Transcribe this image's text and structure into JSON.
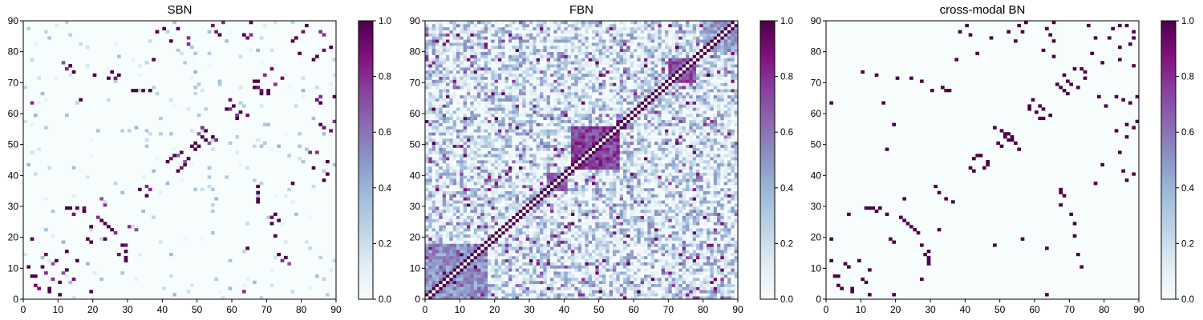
{
  "colors": {
    "low": "#f7fcfd",
    "mid": "#8c96c6",
    "high": "#4d004b",
    "ramp": [
      "#f7fcfd",
      "#e0ecf4",
      "#bfd3e6",
      "#9ebcda",
      "#8c96c6",
      "#8c6bb1",
      "#88419d",
      "#810f7c",
      "#4d004b"
    ]
  },
  "chart_data": [
    {
      "type": "heatmap",
      "title": "SBN",
      "matrix_size": 90,
      "x_ticks": [
        "0",
        "10",
        "20",
        "30",
        "40",
        "50",
        "60",
        "70",
        "80",
        "90"
      ],
      "y_ticks": [
        "0",
        "10",
        "20",
        "30",
        "40",
        "50",
        "60",
        "70",
        "80",
        "90"
      ],
      "xlim": [
        0,
        90
      ],
      "ylim": [
        0,
        90
      ],
      "colorbar": {
        "range": [
          0.0,
          1.0
        ],
        "ticks": [
          "0.0",
          "0.2",
          "0.4",
          "0.6",
          "0.8",
          "1.0"
        ]
      },
      "density": "sparse",
      "cells": [
        [
          2,
          19,
          1.0
        ],
        [
          3,
          7,
          1.0
        ],
        [
          4,
          3,
          0.9
        ],
        [
          5,
          10,
          1.0
        ],
        [
          6,
          14,
          0.9
        ],
        [
          7,
          2,
          1.0
        ],
        [
          8,
          6,
          0.8
        ],
        [
          9,
          12,
          1.0
        ],
        [
          10,
          1,
          1.0
        ],
        [
          11,
          8,
          0.7
        ],
        [
          12,
          15,
          1.0
        ],
        [
          13,
          29,
          1.0
        ],
        [
          14,
          73,
          1.0
        ],
        [
          15,
          29,
          1.0
        ],
        [
          16,
          64,
          1.0
        ],
        [
          17,
          29,
          0.9
        ],
        [
          18,
          19,
          1.0
        ],
        [
          19,
          23,
          1.0
        ],
        [
          20,
          72,
          1.0
        ],
        [
          21,
          26,
          0.8
        ],
        [
          22,
          32,
          0.7
        ],
        [
          23,
          24,
          1.0
        ],
        [
          24,
          71,
          1.0
        ],
        [
          25,
          22,
          1.0
        ],
        [
          26,
          71,
          0.9
        ],
        [
          27,
          14,
          0.9
        ],
        [
          28,
          17,
          1.0
        ],
        [
          29,
          12,
          1.0
        ],
        [
          30,
          23,
          0.8
        ],
        [
          31,
          67,
          1.0
        ],
        [
          32,
          67,
          1.0
        ],
        [
          33,
          35,
          1.0
        ],
        [
          34,
          67,
          1.0
        ],
        [
          35,
          36,
          0.8
        ],
        [
          36,
          67,
          1.0
        ],
        [
          37,
          77,
          1.0
        ],
        [
          38,
          86,
          1.0
        ],
        [
          40,
          87,
          1.0
        ],
        [
          41,
          44,
          1.0
        ],
        [
          42,
          45,
          0.9
        ],
        [
          43,
          46,
          1.0
        ],
        [
          44,
          46,
          0.8
        ],
        [
          45,
          47,
          1.0
        ],
        [
          46,
          44,
          0.7
        ],
        [
          47,
          84,
          0.8
        ],
        [
          48,
          49,
          1.0
        ],
        [
          49,
          50,
          1.0
        ],
        [
          50,
          53,
          1.0
        ],
        [
          51,
          55,
          0.8
        ],
        [
          52,
          51,
          1.0
        ],
        [
          53,
          50,
          0.7
        ],
        [
          54,
          52,
          1.0
        ],
        [
          55,
          86,
          0.9
        ],
        [
          56,
          85,
          1.0
        ],
        [
          57,
          89,
          0.8
        ],
        [
          58,
          61,
          1.0
        ],
        [
          59,
          64,
          0.9
        ],
        [
          60,
          62,
          1.0
        ],
        [
          61,
          59,
          0.8
        ],
        [
          62,
          60,
          1.0
        ],
        [
          63,
          2,
          0.8
        ],
        [
          64,
          84,
          1.0
        ],
        [
          65,
          85,
          0.8
        ],
        [
          66,
          70,
          1.0
        ],
        [
          67,
          68,
          0.9
        ],
        [
          68,
          66,
          1.0
        ],
        [
          69,
          72,
          0.8
        ],
        [
          70,
          67,
          1.0
        ],
        [
          71,
          74,
          0.9
        ],
        [
          72,
          27,
          1.0
        ],
        [
          73,
          25,
          1.0
        ],
        [
          74,
          12,
          0.8
        ],
        [
          75,
          13,
          1.0
        ],
        [
          76,
          11,
          0.7
        ],
        [
          77,
          83,
          1.0
        ],
        [
          78,
          84,
          1.0
        ],
        [
          79,
          79,
          1.0
        ],
        [
          80,
          86,
          0.9
        ],
        [
          81,
          88,
          1.0
        ],
        [
          82,
          47,
          0.8
        ],
        [
          83,
          42,
          1.0
        ],
        [
          84,
          64,
          0.9
        ],
        [
          85,
          63,
          1.0
        ],
        [
          86,
          85,
          0.8
        ],
        [
          87,
          44,
          1.0
        ],
        [
          88,
          54,
          0.9
        ],
        [
          89,
          65,
          1.0
        ]
      ]
    },
    {
      "type": "heatmap",
      "title": "FBN",
      "matrix_size": 90,
      "x_ticks": [
        "0",
        "10",
        "20",
        "30",
        "40",
        "50",
        "60",
        "70",
        "80",
        "90"
      ],
      "y_ticks": [
        "0",
        "10",
        "20",
        "30",
        "40",
        "50",
        "60",
        "70",
        "80",
        "90"
      ],
      "xlim": [
        0,
        90
      ],
      "ylim": [
        0,
        90
      ],
      "colorbar": {
        "range": [
          0.0,
          1.0
        ],
        "ticks": [
          "0.0",
          "0.2",
          "0.4",
          "0.6",
          "0.8",
          "1.0"
        ]
      },
      "density": "dense",
      "diagonal": "white",
      "blocks": [
        {
          "rows": [
            42,
            56
          ],
          "cols": [
            42,
            56
          ],
          "value": 0.85
        },
        {
          "rows": [
            70,
            78
          ],
          "cols": [
            70,
            78
          ],
          "value": 0.8
        },
        {
          "rows": [
            0,
            18
          ],
          "cols": [
            0,
            18
          ],
          "value": 0.6
        },
        {
          "rows": [
            35,
            41
          ],
          "cols": [
            35,
            41
          ],
          "value": 0.75
        },
        {
          "rows": [
            80,
            90
          ],
          "cols": [
            80,
            90
          ],
          "value": 0.55
        }
      ]
    },
    {
      "type": "heatmap",
      "title": "cross-modal BN",
      "matrix_size": 90,
      "x_ticks": [
        "0",
        "10",
        "20",
        "30",
        "40",
        "50",
        "60",
        "70",
        "80",
        "90"
      ],
      "y_ticks": [
        "0",
        "10",
        "20",
        "30",
        "40",
        "50",
        "60",
        "70",
        "80",
        "90"
      ],
      "xlim": [
        0,
        90
      ],
      "ylim": [
        0,
        90
      ],
      "colorbar": {
        "range": [
          0.0,
          1.0
        ],
        "ticks": [
          "0.0",
          "0.2",
          "0.4",
          "0.6",
          "0.8",
          "1.0"
        ]
      },
      "density": "binary",
      "cells": [
        [
          1,
          19,
          1.0
        ],
        [
          3,
          7,
          1.0
        ],
        [
          4,
          3,
          1.0
        ],
        [
          5,
          11,
          1.0
        ],
        [
          6,
          27,
          1.0
        ],
        [
          7,
          2,
          1.0
        ],
        [
          9,
          12,
          1.0
        ],
        [
          10,
          6,
          1.0
        ],
        [
          11,
          29,
          1.0
        ],
        [
          12,
          1,
          1.0
        ],
        [
          13,
          29,
          1.0
        ],
        [
          14,
          72,
          1.0
        ],
        [
          15,
          29,
          1.0
        ],
        [
          16,
          63,
          1.0
        ],
        [
          17,
          48,
          1.0
        ],
        [
          18,
          19,
          1.0
        ],
        [
          19,
          56,
          1.0
        ],
        [
          20,
          71,
          1.0
        ],
        [
          21,
          26,
          1.0
        ],
        [
          22,
          32,
          1.0
        ],
        [
          23,
          24,
          1.0
        ],
        [
          24,
          71,
          1.0
        ],
        [
          25,
          22,
          1.0
        ],
        [
          27,
          17,
          1.0
        ],
        [
          28,
          14,
          1.0
        ],
        [
          29,
          12,
          1.0
        ],
        [
          30,
          67,
          1.0
        ],
        [
          31,
          36,
          1.0
        ],
        [
          32,
          34,
          1.0
        ],
        [
          33,
          68,
          1.0
        ],
        [
          34,
          67,
          1.0
        ],
        [
          35,
          67,
          1.0
        ],
        [
          37,
          77,
          1.0
        ],
        [
          38,
          86,
          1.0
        ],
        [
          40,
          88,
          1.0
        ],
        [
          41,
          42,
          1.0
        ],
        [
          42,
          45,
          1.0
        ],
        [
          43,
          46,
          1.0
        ],
        [
          44,
          46,
          1.0
        ],
        [
          46,
          44,
          1.0
        ],
        [
          47,
          84,
          1.0
        ],
        [
          48,
          55,
          1.0
        ],
        [
          50,
          49,
          1.0
        ],
        [
          51,
          53,
          1.0
        ],
        [
          52,
          51,
          1.0
        ],
        [
          53,
          52,
          1.0
        ],
        [
          54,
          50,
          1.0
        ],
        [
          55,
          88,
          1.0
        ],
        [
          56,
          86,
          1.0
        ],
        [
          57,
          89,
          1.0
        ],
        [
          58,
          62,
          1.0
        ],
        [
          59,
          64,
          1.0
        ],
        [
          60,
          60,
          1.0
        ],
        [
          61,
          58,
          1.0
        ],
        [
          62,
          61,
          1.0
        ],
        [
          63,
          1,
          1.0
        ],
        [
          64,
          85,
          1.0
        ],
        [
          65,
          83,
          1.0
        ],
        [
          66,
          69,
          1.0
        ],
        [
          67,
          68,
          1.0
        ],
        [
          68,
          72,
          1.0
        ],
        [
          69,
          70,
          1.0
        ],
        [
          70,
          27,
          1.0
        ],
        [
          71,
          74,
          1.0
        ],
        [
          72,
          14,
          1.0
        ],
        [
          73,
          10,
          1.0
        ],
        [
          74,
          73,
          1.0
        ],
        [
          75,
          88,
          1.0
        ],
        [
          76,
          79,
          1.0
        ],
        [
          77,
          84,
          1.0
        ],
        [
          78,
          65,
          1.0
        ],
        [
          79,
          43,
          1.0
        ],
        [
          80,
          62,
          1.0
        ],
        [
          81,
          84,
          1.0
        ],
        [
          82,
          87,
          1.0
        ],
        [
          83,
          54,
          1.0
        ],
        [
          84,
          88,
          1.0
        ],
        [
          85,
          41,
          1.0
        ],
        [
          86,
          52,
          1.0
        ],
        [
          87,
          63,
          1.0
        ],
        [
          88,
          86,
          1.0
        ],
        [
          89,
          65,
          1.0
        ]
      ]
    }
  ]
}
